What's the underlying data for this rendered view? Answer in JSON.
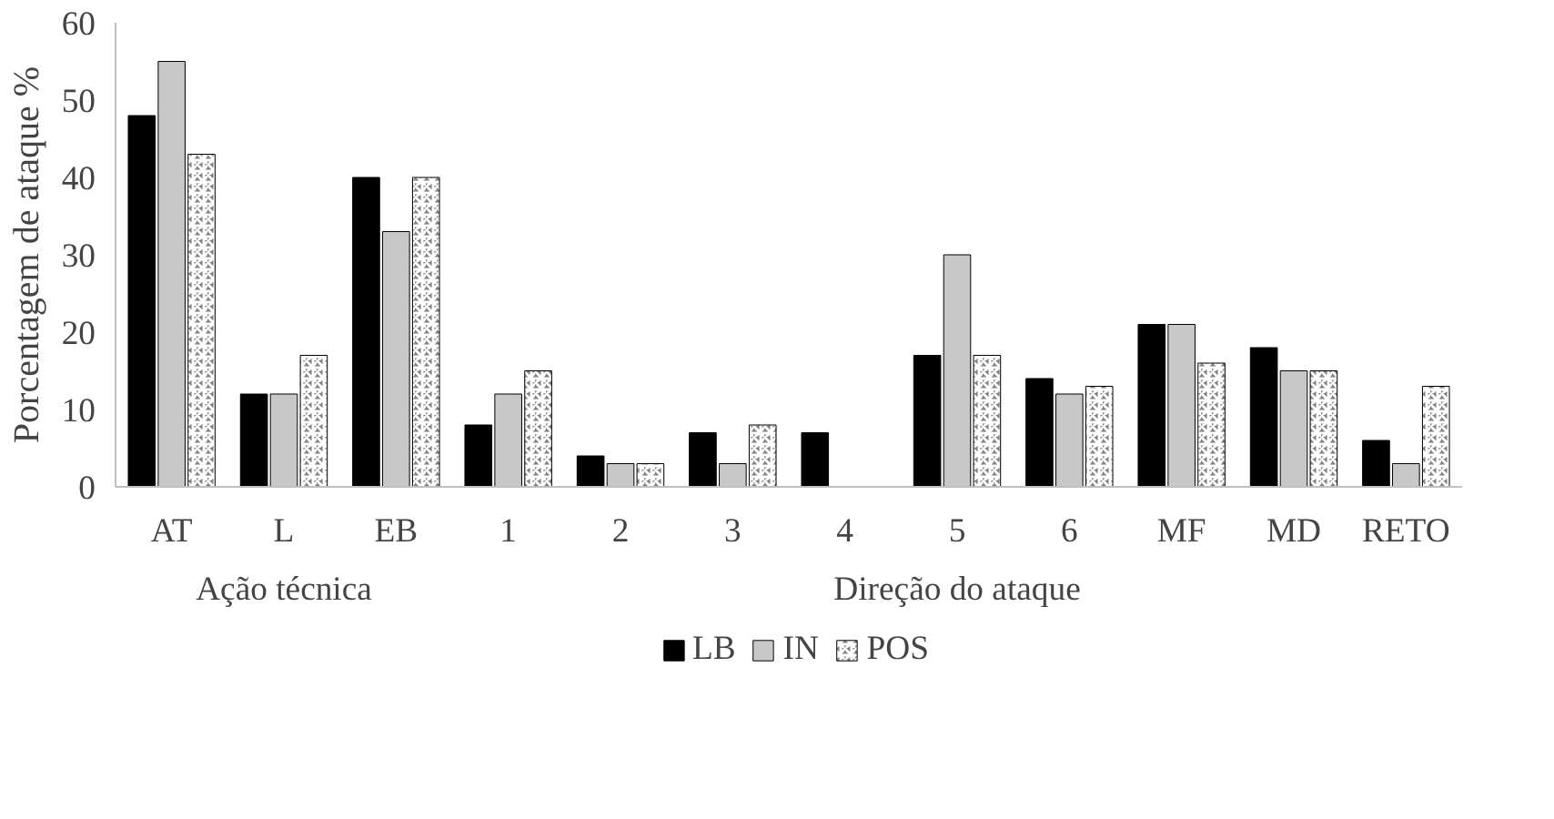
{
  "chart_data": {
    "type": "bar",
    "ylabel": "Porcentagem de ataque %",
    "categories": [
      "AT",
      "L",
      "EB",
      "1",
      "2",
      "3",
      "4",
      "5",
      "6",
      "MF",
      "MD",
      "RETO"
    ],
    "series": [
      {
        "name": "LB",
        "color": "#000000",
        "values": [
          48,
          12,
          40,
          8,
          4,
          7,
          7,
          17,
          14,
          21,
          18,
          6
        ]
      },
      {
        "name": "IN",
        "color": "#c8c8c8",
        "values": [
          55,
          12,
          33,
          12,
          3,
          3,
          0,
          30,
          12,
          21,
          15,
          3
        ]
      },
      {
        "name": "POS",
        "color": "#7f7f7f",
        "values": [
          43,
          17,
          40,
          15,
          3,
          8,
          0,
          17,
          13,
          16,
          15,
          13
        ]
      }
    ],
    "ylim": [
      0,
      60
    ],
    "yticks": [
      0,
      10,
      20,
      30,
      40,
      50,
      60
    ],
    "grid": false,
    "legend": "bottom",
    "annotations": [
      "Ação técnica",
      "Direção do ataque"
    ]
  }
}
